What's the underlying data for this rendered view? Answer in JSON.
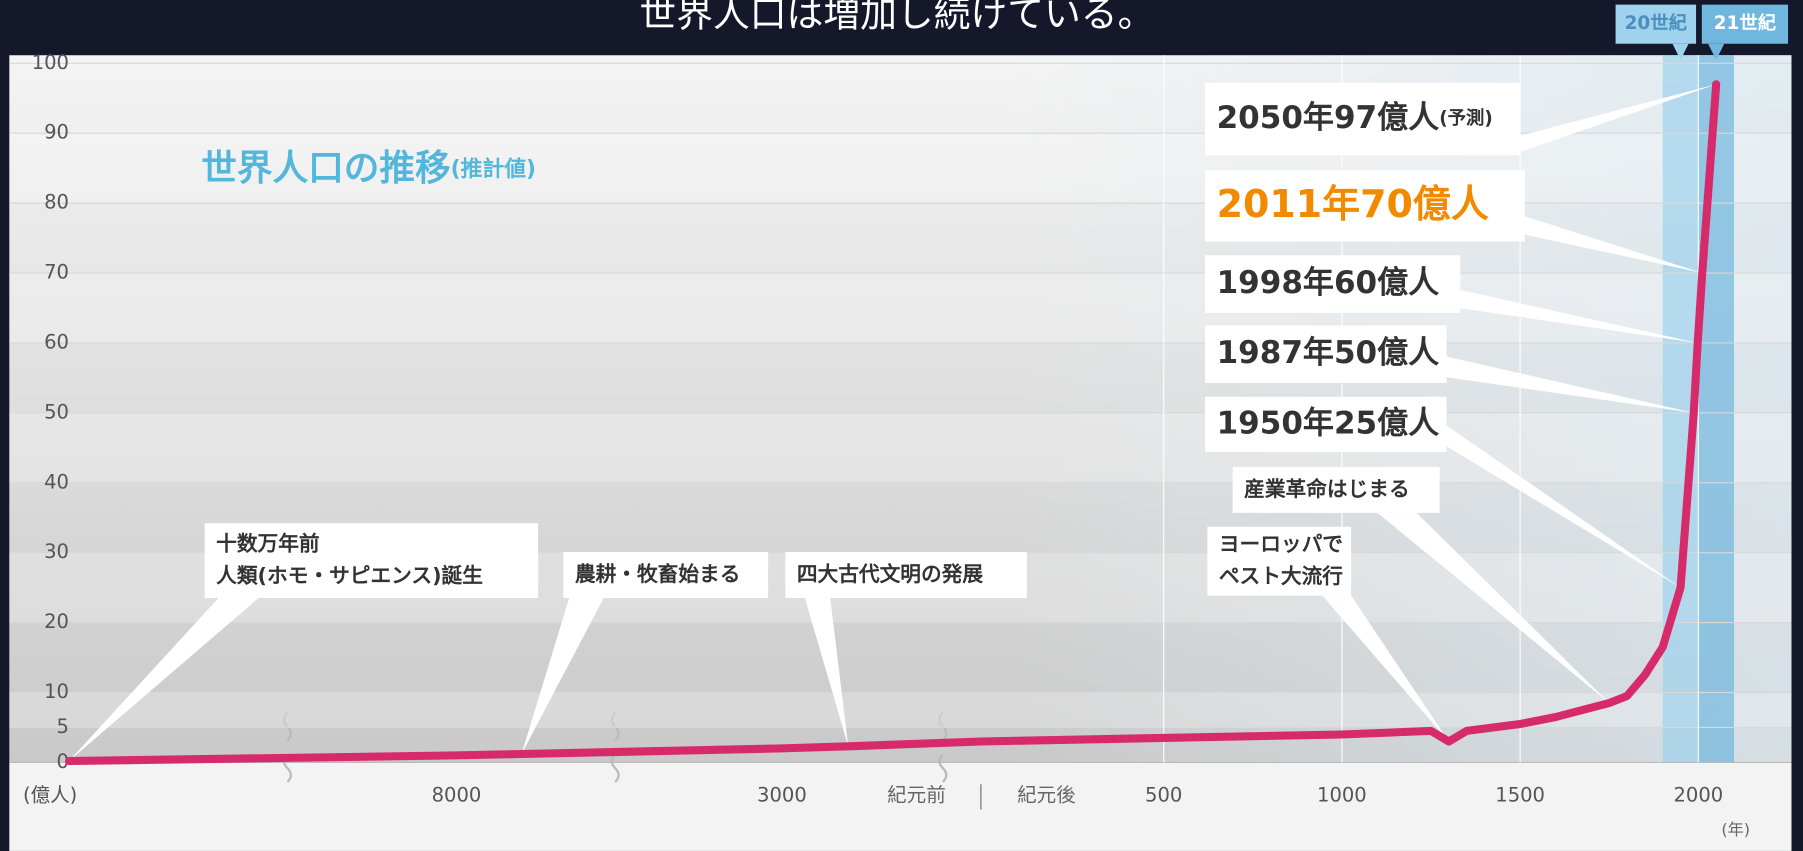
{
  "chart_data": {
    "type": "line",
    "title": "世界人口は増加し続けている。",
    "subtitle": "世界人口の推移",
    "subtitle_note": "(推計値)",
    "ylabel": "(億人)",
    "xlabel": "(年)",
    "era_labels": {
      "before": "紀元前",
      "after": "紀元後"
    },
    "color": "#d62a6b",
    "x": [
      -200000,
      -8000,
      -7000,
      -3000,
      -2000,
      0,
      1000,
      1250,
      1300,
      1350,
      1500,
      1600,
      1750,
      1800,
      1850,
      1900,
      1950,
      1987,
      1998,
      2011,
      2050
    ],
    "values": [
      0.2,
      1,
      1.2,
      2,
      2.3,
      3,
      4,
      4.5,
      3,
      4.5,
      5.5,
      6.5,
      8.5,
      9.5,
      12.5,
      16.5,
      25,
      50,
      60,
      70,
      97
    ],
    "annotations": [
      {
        "lines": [
          "十数万年前",
          "人類(ホモ・サピエンス)誕生"
        ]
      },
      null,
      {
        "lines": [
          "農耕・牧畜始まる"
        ]
      },
      null,
      {
        "lines": [
          "四大古代文明の発展"
        ]
      },
      null,
      null,
      null,
      {
        "lines": [
          "ヨーロッパで",
          "ペスト大流行"
        ]
      },
      null,
      null,
      null,
      {
        "lines": [
          "産業革命はじまる"
        ]
      },
      null,
      null,
      null,
      {
        "lines": [
          "1950年25億人"
        ]
      },
      {
        "lines": [
          "1987年50億人"
        ]
      },
      {
        "lines": [
          "1998年60億人"
        ]
      },
      {
        "lines": [
          "2011年70億人"
        ],
        "color": "#f28a00"
      },
      {
        "lines": [
          "2050年97億人"
        ],
        "note": "(予測)"
      }
    ],
    "bands": [
      {
        "label": "20世紀",
        "from": 1900,
        "to": 2000,
        "color": "#9fd2ec"
      },
      {
        "label": "21世紀",
        "from": 2000,
        "to": 2100,
        "color": "#6fb7de"
      }
    ],
    "xlim": [
      -200000,
      2100
    ],
    "xticks": [
      {
        "value": -8000,
        "label": "8000"
      },
      {
        "value": -3000,
        "label": "3000"
      },
      500,
      1000,
      1500,
      2000
    ],
    "ylim": [
      0,
      100
    ],
    "yticks": [
      0,
      5,
      10,
      20,
      30,
      40,
      50,
      60,
      70,
      80,
      90,
      100
    ],
    "grid": true
  }
}
